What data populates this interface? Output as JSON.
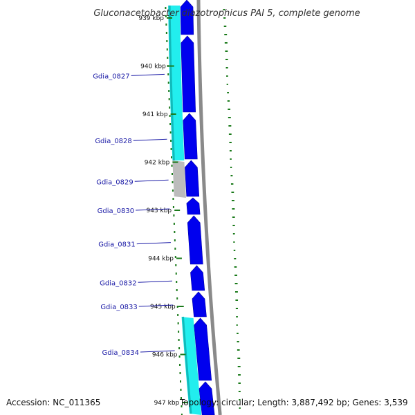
{
  "title": "Gluconacetobacter diazotrophicus PAI 5, complete genome",
  "accession": "Accession: NC_011365",
  "topology": "Topology: circular; Length: 3,887,492 bp; Genes: 3,539",
  "colors": {
    "gene": "#0000ee",
    "cyan": "#22eeee",
    "gray": "#bcbcbc",
    "backbone": "#8a8a8a",
    "tick": "#1a7a1a",
    "label_line": "#1a1aa6"
  },
  "ticks": [
    {
      "label": "939 kbp",
      "pos": 939
    },
    {
      "label": "940 kbp",
      "pos": 940
    },
    {
      "label": "941 kbp",
      "pos": 941
    },
    {
      "label": "942 kbp",
      "pos": 942
    },
    {
      "label": "943 kbp",
      "pos": 943
    },
    {
      "label": "944 kbp",
      "pos": 944
    },
    {
      "label": "945 kbp",
      "pos": 945
    },
    {
      "label": "946 kbp",
      "pos": 946
    },
    {
      "label": "947 kbp",
      "pos": 947
    }
  ],
  "genes": [
    {
      "name": "Gdia_0827",
      "label_pos": 940.2
    },
    {
      "name": "Gdia_0828",
      "label_pos": 941.55
    },
    {
      "name": "Gdia_0829",
      "label_pos": 942.4
    },
    {
      "name": "Gdia_0830",
      "label_pos": 943.0
    },
    {
      "name": "Gdia_0831",
      "label_pos": 943.7
    },
    {
      "name": "Gdia_0832",
      "label_pos": 944.5
    },
    {
      "name": "Gdia_0833",
      "label_pos": 945.0
    },
    {
      "name": "Gdia_0834",
      "label_pos": 945.95
    }
  ]
}
